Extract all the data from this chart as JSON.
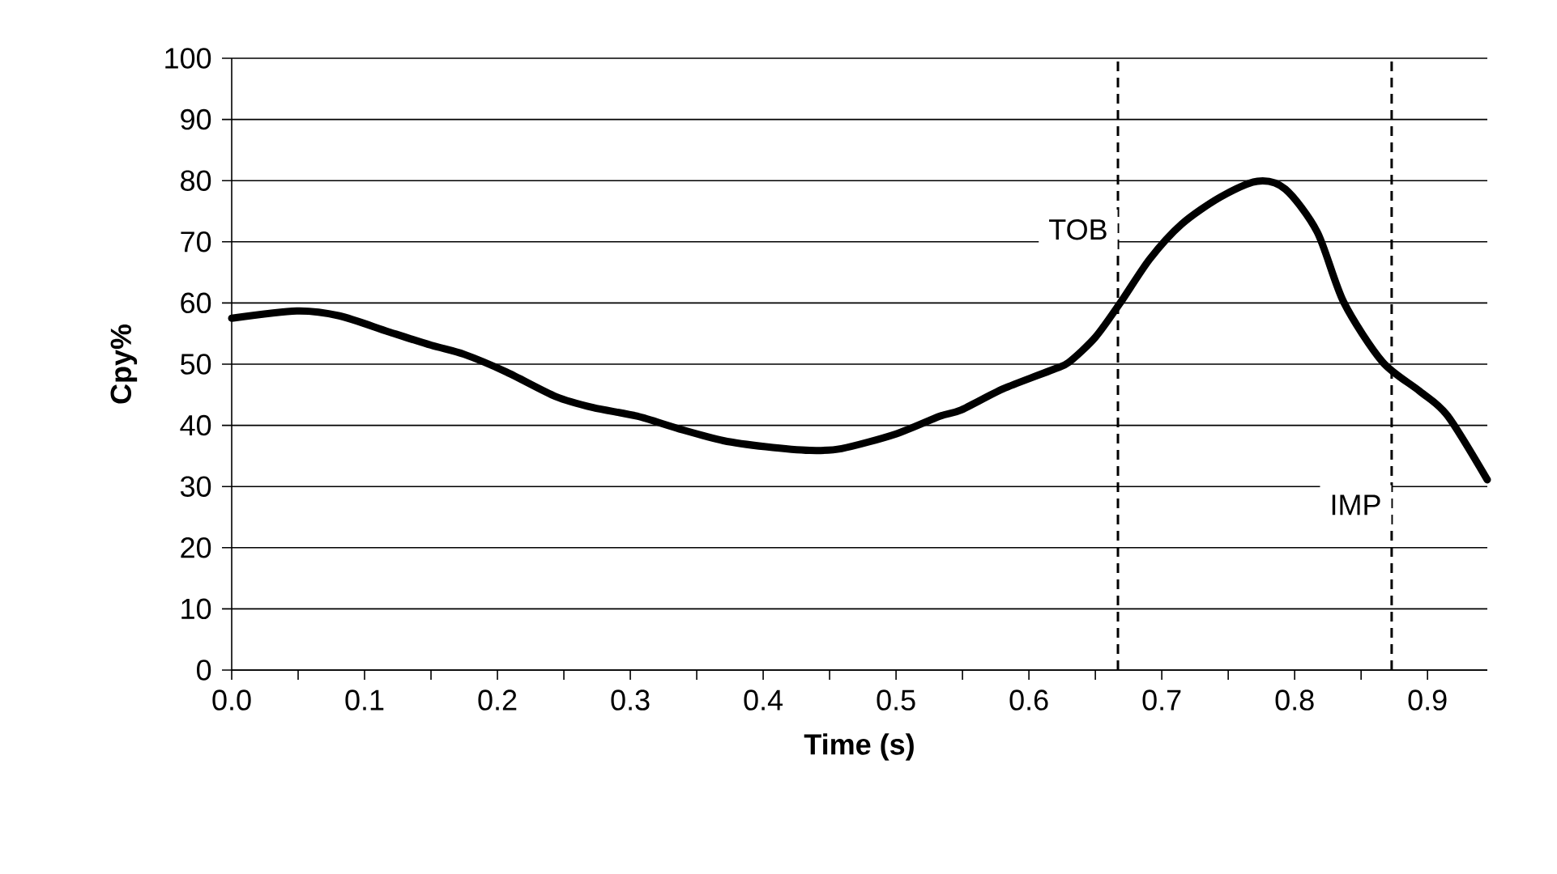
{
  "chart_data": {
    "type": "line",
    "xlabel": "Time (s)",
    "ylabel": "Cpy%",
    "x": [
      0,
      0.049,
      0.081,
      0.118,
      0.15,
      0.175,
      0.207,
      0.244,
      0.272,
      0.305,
      0.337,
      0.37,
      0.402,
      0.435,
      0.459,
      0.5,
      0.533,
      0.549,
      0.581,
      0.618,
      0.63,
      0.65,
      0.669,
      0.691,
      0.715,
      0.744,
      0.772,
      0.793,
      0.817,
      0.837,
      0.866,
      0.894,
      0.915,
      0.945
    ],
    "series": [
      {
        "color": "#000000",
        "values": [
          57.5,
          58.7,
          57.9,
          55.3,
          53.1,
          51.6,
          48.7,
          44.7,
          42.9,
          41.5,
          39.4,
          37.5,
          36.5,
          35.9,
          36.2,
          38.6,
          41.5,
          42.5,
          46.0,
          49.1,
          50.3,
          54.4,
          60.1,
          67.2,
          72.9,
          77.3,
          79.9,
          78.6,
          71.6,
          60.1,
          50.4,
          45.6,
          41.6,
          31.1
        ]
      }
    ],
    "xlim": [
      0,
      0.945
    ],
    "ylim": [
      0,
      100
    ],
    "xticks": [
      {
        "value": 0,
        "label": "0.0"
      },
      {
        "value": 0.05,
        "label": null
      },
      0.1,
      {
        "value": 0.15,
        "label": null
      },
      0.2,
      {
        "value": 0.25,
        "label": null
      },
      0.3,
      {
        "value": 0.35,
        "label": null
      },
      0.4,
      {
        "value": 0.45,
        "label": null
      },
      0.5,
      {
        "value": 0.55,
        "label": null
      },
      0.6,
      {
        "value": 0.65,
        "label": null
      },
      0.7,
      {
        "value": 0.75,
        "label": null
      },
      0.8,
      {
        "value": 0.85,
        "label": null
      },
      0.9
    ],
    "yticks": [
      0,
      10,
      20,
      30,
      40,
      50,
      60,
      70,
      80,
      90,
      100
    ],
    "grid": "y",
    "line_style": "solid",
    "ref_lines": [
      {
        "axis": "x",
        "value": 0.667,
        "label": "TOB",
        "line_style": "dashed",
        "color": "#000000"
      },
      {
        "axis": "x",
        "value": 0.873,
        "label": "IMP",
        "line_style": "dashed",
        "color": "#000000"
      }
    ]
  }
}
